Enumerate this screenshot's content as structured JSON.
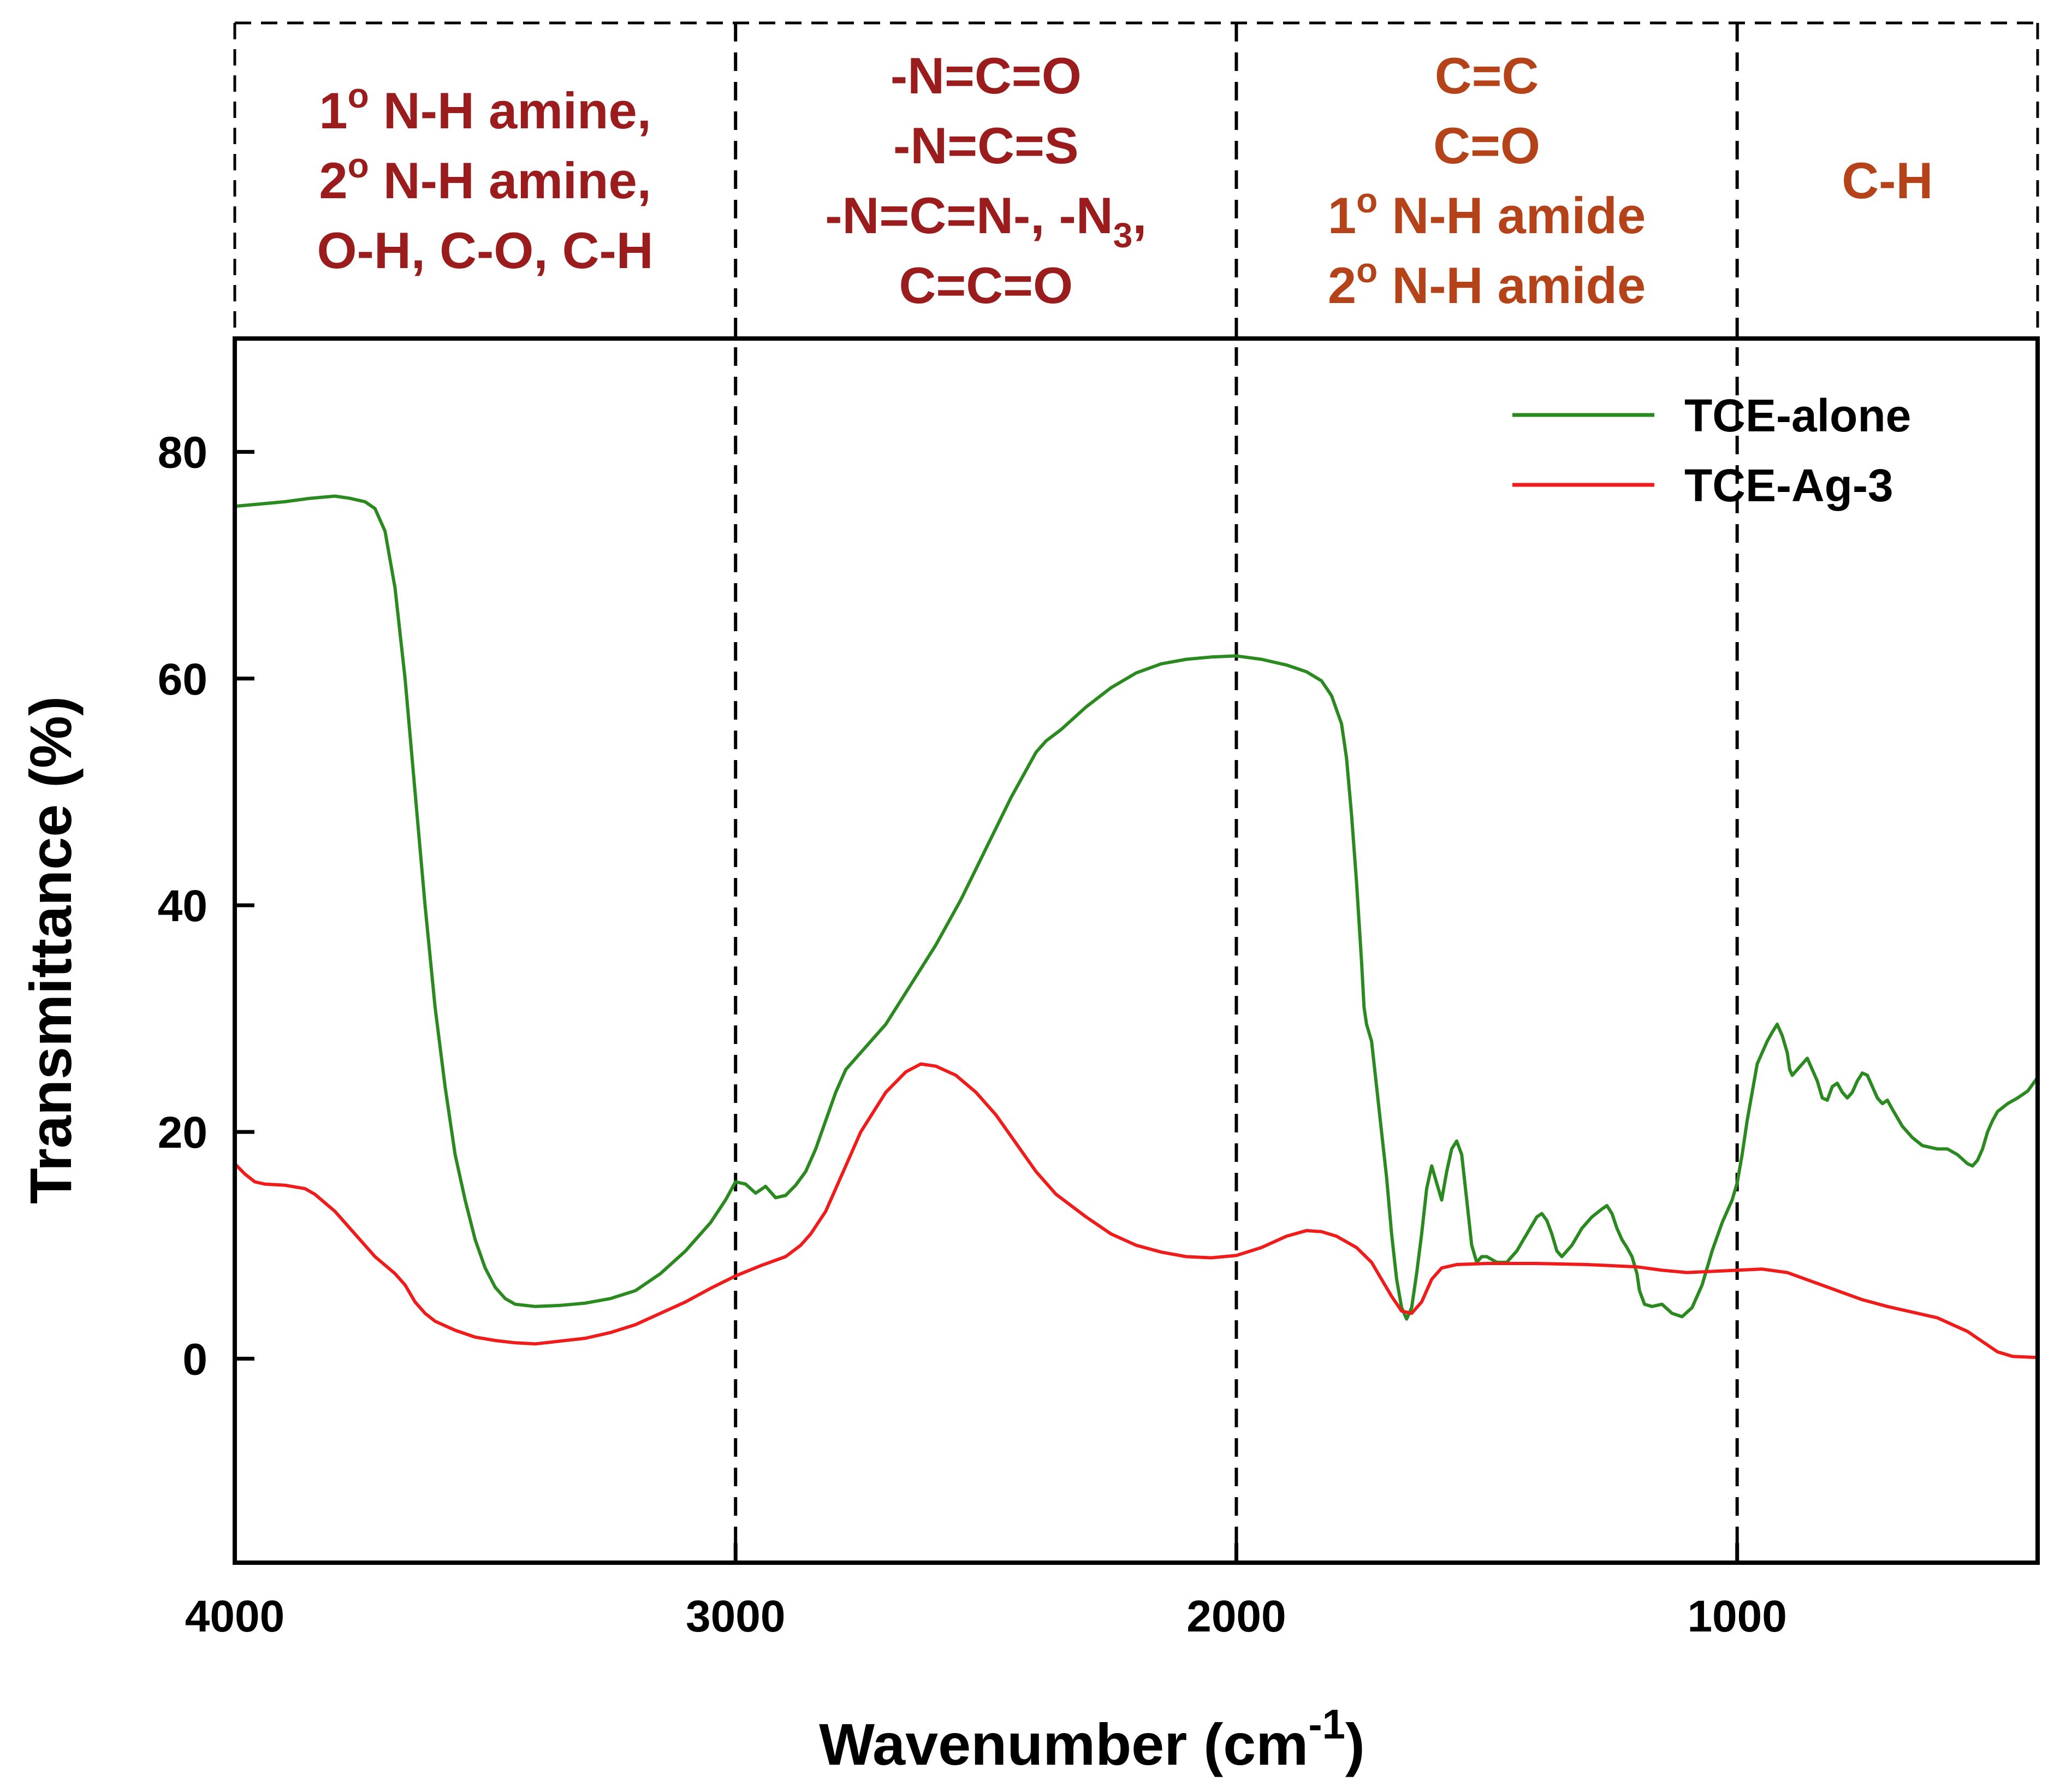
{
  "chart_data": {
    "type": "line",
    "title": "",
    "xlabel": "Wavenumber (cm",
    "xlabel_sup": "-1",
    "xlabel_close": ")",
    "ylabel": "Transmittance (%)",
    "xlim": [
      4000,
      400
    ],
    "ylim": [
      -18,
      90
    ],
    "x_ticks": [
      4000,
      3000,
      2000,
      1000
    ],
    "y_ticks": [
      80,
      60,
      40,
      20,
      0
    ],
    "grid": false,
    "legend": {
      "placement": "top-right",
      "entries": [
        "TCE-alone",
        "TCE-Ag-3"
      ]
    },
    "region_boundaries": [
      3000,
      2000,
      1000
    ],
    "regions": [
      {
        "color": "#9b1c1c",
        "lines": [
          [
            {
              "t": "1"
            },
            {
              "t": "o",
              "sup": true
            },
            {
              "t": " N-H amine,"
            }
          ],
          [
            {
              "t": "2"
            },
            {
              "t": "o",
              "sup": true
            },
            {
              "t": " N-H amine,"
            }
          ],
          [
            {
              "t": "O-H, C-O, C-H"
            }
          ]
        ]
      },
      {
        "color": "#9b1c1c",
        "lines": [
          [
            {
              "t": "-N=C=O"
            }
          ],
          [
            {
              "t": "-N=C=S"
            }
          ],
          [
            {
              "t": "-N=C=N-, -N"
            },
            {
              "t": "3",
              "sub": true
            },
            {
              "t": ","
            }
          ],
          [
            {
              "t": "C=C=O"
            }
          ]
        ]
      },
      {
        "color": "#b5431a",
        "lines": [
          [
            {
              "t": "C=C"
            }
          ],
          [
            {
              "t": "C=O"
            }
          ],
          [
            {
              "t": "1"
            },
            {
              "t": "o",
              "sup": true
            },
            {
              "t": " N-H amide"
            }
          ],
          [
            {
              "t": "2"
            },
            {
              "t": "o",
              "sup": true
            },
            {
              "t": " N-H amide"
            }
          ]
        ]
      },
      {
        "color": "#b5431a",
        "lines": [
          [
            {
              "t": "C-H"
            }
          ]
        ]
      }
    ],
    "series": [
      {
        "name": "TCE-alone",
        "color": "#2a8a1f",
        "points": [
          [
            4000,
            75.2
          ],
          [
            3950,
            75.4
          ],
          [
            3900,
            75.6
          ],
          [
            3850,
            75.9
          ],
          [
            3800,
            76.1
          ],
          [
            3770,
            75.9
          ],
          [
            3740,
            75.6
          ],
          [
            3720,
            75.0
          ],
          [
            3700,
            73.0
          ],
          [
            3680,
            68.0
          ],
          [
            3660,
            60.0
          ],
          [
            3640,
            50.0
          ],
          [
            3620,
            40.0
          ],
          [
            3600,
            31.0
          ],
          [
            3580,
            24.0
          ],
          [
            3560,
            18.0
          ],
          [
            3540,
            14.0
          ],
          [
            3520,
            10.5
          ],
          [
            3500,
            8.0
          ],
          [
            3480,
            6.3
          ],
          [
            3460,
            5.3
          ],
          [
            3440,
            4.8
          ],
          [
            3400,
            4.6
          ],
          [
            3350,
            4.7
          ],
          [
            3300,
            4.9
          ],
          [
            3250,
            5.3
          ],
          [
            3200,
            6.0
          ],
          [
            3150,
            7.5
          ],
          [
            3100,
            9.5
          ],
          [
            3050,
            12.0
          ],
          [
            3020,
            14.0
          ],
          [
            3000,
            15.6
          ],
          [
            2980,
            15.4
          ],
          [
            2960,
            14.6
          ],
          [
            2940,
            15.2
          ],
          [
            2920,
            14.2
          ],
          [
            2900,
            14.4
          ],
          [
            2880,
            15.3
          ],
          [
            2860,
            16.5
          ],
          [
            2840,
            18.5
          ],
          [
            2820,
            21.0
          ],
          [
            2800,
            23.5
          ],
          [
            2780,
            25.5
          ],
          [
            2750,
            27.0
          ],
          [
            2700,
            29.5
          ],
          [
            2650,
            33.0
          ],
          [
            2600,
            36.5
          ],
          [
            2550,
            40.5
          ],
          [
            2500,
            45.0
          ],
          [
            2450,
            49.5
          ],
          [
            2400,
            53.5
          ],
          [
            2380,
            54.5
          ],
          [
            2350,
            55.5
          ],
          [
            2300,
            57.5
          ],
          [
            2250,
            59.2
          ],
          [
            2200,
            60.5
          ],
          [
            2150,
            61.3
          ],
          [
            2100,
            61.7
          ],
          [
            2050,
            61.9
          ],
          [
            2000,
            62.0
          ],
          [
            1950,
            61.7
          ],
          [
            1900,
            61.2
          ],
          [
            1860,
            60.6
          ],
          [
            1830,
            59.8
          ],
          [
            1810,
            58.5
          ],
          [
            1790,
            56.0
          ],
          [
            1780,
            53.0
          ],
          [
            1770,
            48.0
          ],
          [
            1760,
            42.0
          ],
          [
            1750,
            35.0
          ],
          [
            1745,
            31.0
          ],
          [
            1740,
            29.5
          ],
          [
            1730,
            28.0
          ],
          [
            1720,
            24.0
          ],
          [
            1710,
            20.0
          ],
          [
            1700,
            16.0
          ],
          [
            1690,
            11.0
          ],
          [
            1680,
            7.0
          ],
          [
            1670,
            4.5
          ],
          [
            1660,
            3.5
          ],
          [
            1650,
            4.5
          ],
          [
            1640,
            7.5
          ],
          [
            1630,
            11.0
          ],
          [
            1620,
            15.0
          ],
          [
            1610,
            17.0
          ],
          [
            1600,
            15.5
          ],
          [
            1590,
            14.0
          ],
          [
            1580,
            16.5
          ],
          [
            1570,
            18.5
          ],
          [
            1560,
            19.2
          ],
          [
            1550,
            18.0
          ],
          [
            1540,
            14.0
          ],
          [
            1530,
            10.0
          ],
          [
            1520,
            8.5
          ],
          [
            1510,
            9.0
          ],
          [
            1500,
            9.0
          ],
          [
            1480,
            8.5
          ],
          [
            1460,
            8.5
          ],
          [
            1440,
            9.5
          ],
          [
            1420,
            11.0
          ],
          [
            1400,
            12.5
          ],
          [
            1390,
            12.8
          ],
          [
            1380,
            12.2
          ],
          [
            1370,
            11.0
          ],
          [
            1360,
            9.5
          ],
          [
            1350,
            9.0
          ],
          [
            1330,
            10.0
          ],
          [
            1310,
            11.5
          ],
          [
            1290,
            12.5
          ],
          [
            1270,
            13.2
          ],
          [
            1260,
            13.5
          ],
          [
            1250,
            12.8
          ],
          [
            1240,
            11.5
          ],
          [
            1230,
            10.5
          ],
          [
            1220,
            9.8
          ],
          [
            1210,
            9.0
          ],
          [
            1200,
            7.5
          ],
          [
            1195,
            6.0
          ],
          [
            1185,
            4.8
          ],
          [
            1170,
            4.6
          ],
          [
            1150,
            4.8
          ],
          [
            1130,
            4.0
          ],
          [
            1110,
            3.7
          ],
          [
            1090,
            4.5
          ],
          [
            1070,
            6.5
          ],
          [
            1050,
            9.5
          ],
          [
            1030,
            12.0
          ],
          [
            1010,
            14.0
          ],
          [
            1000,
            15.5
          ],
          [
            990,
            18.0
          ],
          [
            980,
            21.0
          ],
          [
            970,
            23.5
          ],
          [
            960,
            26.0
          ],
          [
            950,
            27.0
          ],
          [
            940,
            28.0
          ],
          [
            930,
            28.8
          ],
          [
            920,
            29.5
          ],
          [
            910,
            28.5
          ],
          [
            900,
            27.0
          ],
          [
            895,
            25.5
          ],
          [
            890,
            25.0
          ],
          [
            880,
            25.5
          ],
          [
            870,
            26.0
          ],
          [
            860,
            26.5
          ],
          [
            850,
            25.5
          ],
          [
            840,
            24.5
          ],
          [
            830,
            23.0
          ],
          [
            820,
            22.8
          ],
          [
            810,
            24.0
          ],
          [
            800,
            24.3
          ],
          [
            790,
            23.5
          ],
          [
            780,
            23.0
          ],
          [
            770,
            23.5
          ],
          [
            760,
            24.5
          ],
          [
            750,
            25.2
          ],
          [
            740,
            25.0
          ],
          [
            730,
            24.0
          ],
          [
            720,
            23.0
          ],
          [
            710,
            22.5
          ],
          [
            700,
            22.8
          ],
          [
            690,
            22.0
          ],
          [
            670,
            20.5
          ],
          [
            650,
            19.5
          ],
          [
            630,
            18.8
          ],
          [
            600,
            18.5
          ],
          [
            580,
            18.5
          ],
          [
            560,
            18.0
          ],
          [
            540,
            17.2
          ],
          [
            530,
            17.0
          ],
          [
            520,
            17.5
          ],
          [
            510,
            18.5
          ],
          [
            500,
            20.0
          ],
          [
            490,
            21.0
          ],
          [
            480,
            21.8
          ],
          [
            460,
            22.5
          ],
          [
            440,
            23.0
          ],
          [
            420,
            23.6
          ],
          [
            400,
            24.8
          ]
        ]
      },
      {
        "name": "TCE-Ag-3",
        "color": "#ef1c1c",
        "points": [
          [
            4000,
            17.2
          ],
          [
            3980,
            16.3
          ],
          [
            3960,
            15.6
          ],
          [
            3940,
            15.4
          ],
          [
            3900,
            15.3
          ],
          [
            3860,
            15.0
          ],
          [
            3840,
            14.5
          ],
          [
            3800,
            13.0
          ],
          [
            3760,
            11.0
          ],
          [
            3720,
            9.0
          ],
          [
            3680,
            7.5
          ],
          [
            3660,
            6.5
          ],
          [
            3640,
            5.0
          ],
          [
            3620,
            4.0
          ],
          [
            3600,
            3.3
          ],
          [
            3560,
            2.5
          ],
          [
            3520,
            1.9
          ],
          [
            3480,
            1.6
          ],
          [
            3440,
            1.4
          ],
          [
            3400,
            1.3
          ],
          [
            3360,
            1.5
          ],
          [
            3300,
            1.8
          ],
          [
            3250,
            2.3
          ],
          [
            3200,
            3.0
          ],
          [
            3150,
            4.0
          ],
          [
            3100,
            5.0
          ],
          [
            3050,
            6.2
          ],
          [
            3000,
            7.3
          ],
          [
            2950,
            8.2
          ],
          [
            2900,
            9.0
          ],
          [
            2870,
            10.0
          ],
          [
            2850,
            11.0
          ],
          [
            2820,
            13.0
          ],
          [
            2800,
            15.0
          ],
          [
            2780,
            17.0
          ],
          [
            2750,
            20.0
          ],
          [
            2700,
            23.5
          ],
          [
            2660,
            25.3
          ],
          [
            2630,
            26.0
          ],
          [
            2600,
            25.8
          ],
          [
            2560,
            25.0
          ],
          [
            2520,
            23.5
          ],
          [
            2480,
            21.5
          ],
          [
            2440,
            19.0
          ],
          [
            2400,
            16.5
          ],
          [
            2360,
            14.5
          ],
          [
            2300,
            12.5
          ],
          [
            2250,
            11.0
          ],
          [
            2200,
            10.0
          ],
          [
            2150,
            9.4
          ],
          [
            2100,
            9.0
          ],
          [
            2050,
            8.9
          ],
          [
            2000,
            9.1
          ],
          [
            1950,
            9.8
          ],
          [
            1900,
            10.8
          ],
          [
            1860,
            11.3
          ],
          [
            1830,
            11.2
          ],
          [
            1800,
            10.8
          ],
          [
            1760,
            9.8
          ],
          [
            1730,
            8.5
          ],
          [
            1710,
            7.0
          ],
          [
            1690,
            5.5
          ],
          [
            1670,
            4.2
          ],
          [
            1650,
            4.0
          ],
          [
            1630,
            5.0
          ],
          [
            1610,
            7.0
          ],
          [
            1590,
            8.0
          ],
          [
            1560,
            8.3
          ],
          [
            1500,
            8.4
          ],
          [
            1400,
            8.4
          ],
          [
            1300,
            8.3
          ],
          [
            1200,
            8.1
          ],
          [
            1150,
            7.8
          ],
          [
            1100,
            7.6
          ],
          [
            1050,
            7.7
          ],
          [
            1000,
            7.8
          ],
          [
            950,
            7.9
          ],
          [
            900,
            7.6
          ],
          [
            850,
            6.8
          ],
          [
            800,
            6.0
          ],
          [
            750,
            5.2
          ],
          [
            700,
            4.6
          ],
          [
            650,
            4.1
          ],
          [
            600,
            3.6
          ],
          [
            570,
            3.0
          ],
          [
            540,
            2.4
          ],
          [
            510,
            1.5
          ],
          [
            480,
            0.6
          ],
          [
            450,
            0.2
          ],
          [
            400,
            0.1
          ]
        ]
      }
    ]
  }
}
